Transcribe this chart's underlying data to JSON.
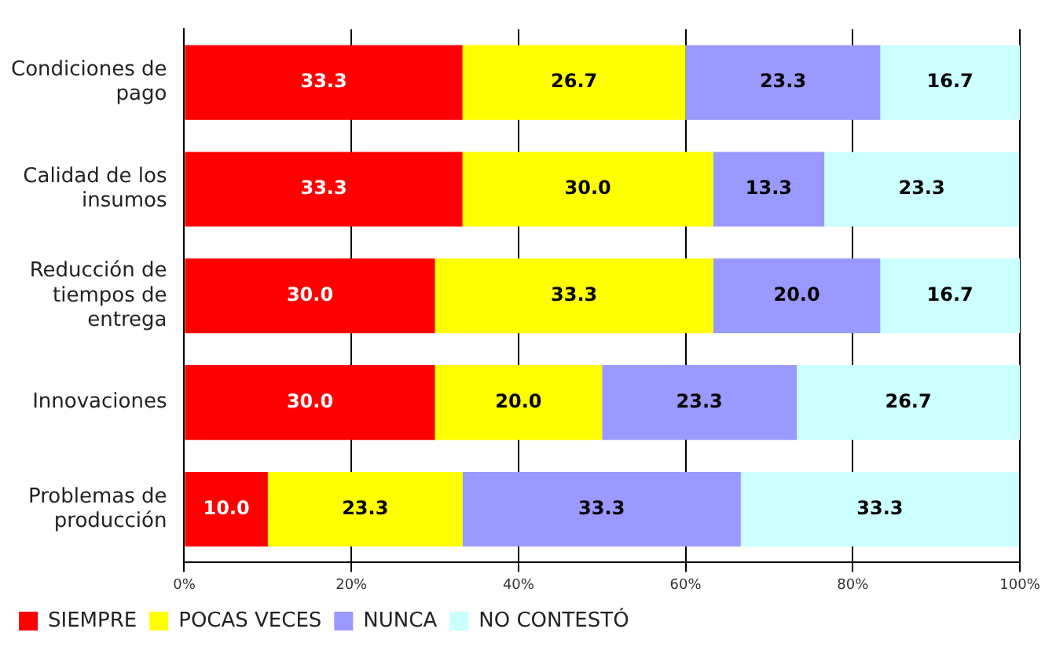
{
  "chart_data": {
    "type": "bar",
    "orientation": "horizontal",
    "stacked": true,
    "categories": [
      "Condiciones de pago",
      "Calidad de los insumos",
      "Reducción de tiempos de entrega",
      "Innovaciones",
      "Problemas de producción"
    ],
    "series": [
      {
        "name": "SIEMPRE",
        "color": "#ff0000",
        "values": [
          33.3,
          33.3,
          30.0,
          30.0,
          10.0
        ],
        "value_labels": [
          "33.3",
          "33.3",
          "30.0",
          "30.0",
          "10.0"
        ]
      },
      {
        "name": "POCAS VECES",
        "color": "#ffff00",
        "values": [
          26.7,
          30.0,
          33.3,
          20.0,
          23.3
        ],
        "value_labels": [
          "26.7",
          "30.0",
          "33.3",
          "20.0",
          "23.3"
        ]
      },
      {
        "name": "NUNCA",
        "color": "#9999ff",
        "values": [
          23.3,
          13.3,
          20.0,
          23.3,
          33.3
        ],
        "value_labels": [
          "23.3",
          "13.3",
          "20.0",
          "23.3",
          "33.3"
        ]
      },
      {
        "name": "NO CONTESTÓ",
        "color": "#ccffff",
        "values": [
          16.7,
          23.3,
          16.7,
          26.7,
          33.3
        ],
        "value_labels": [
          "16.7",
          "23.3",
          "16.7",
          "26.7",
          "33.3"
        ]
      }
    ],
    "xlim": [
      0,
      100
    ],
    "xticks": [
      {
        "value": 0,
        "label": "0%"
      },
      {
        "value": 20,
        "label": "20%"
      },
      {
        "value": 40,
        "label": "40%"
      },
      {
        "value": 60,
        "label": "60%"
      },
      {
        "value": 80,
        "label": "80%"
      },
      {
        "value": 100,
        "label": "100%"
      }
    ],
    "grid": "x",
    "legend": "bottom left"
  }
}
